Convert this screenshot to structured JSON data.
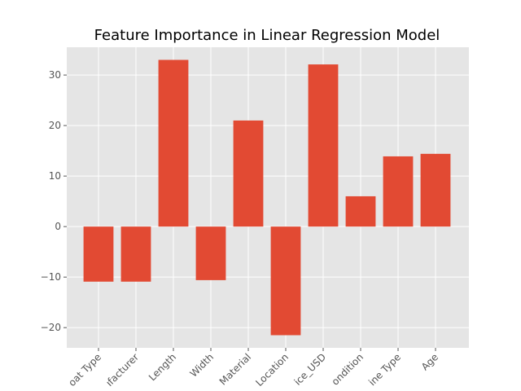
{
  "chart_data": {
    "type": "bar",
    "title": "Feature Importance in Linear Regression Model",
    "categories": [
      "Boat Type",
      "Manufacturer",
      "Length",
      "Width",
      "Material",
      "Location",
      "Price_USD",
      "Condition",
      "Engine Type",
      "Age"
    ],
    "visible_tick_labels": [
      "oat Type",
      "ıfacturer",
      "Length",
      "Width",
      "Material",
      "Location",
      "ice_USD",
      "ondition",
      "ine Type",
      "Age"
    ],
    "values": [
      -10.9,
      -10.9,
      33.0,
      -10.6,
      21.0,
      -21.5,
      32.1,
      6.0,
      13.9,
      14.4
    ],
    "ylim": [
      -24,
      35.5
    ],
    "yticks": [
      -20,
      -10,
      0,
      10,
      20,
      30
    ],
    "ytick_labels": [
      "−20",
      "−10",
      "0",
      "10",
      "20",
      "30"
    ],
    "xlabel": "",
    "ylabel": "",
    "grid": true,
    "legend": "none",
    "bar_color": "#E24A33",
    "plot_background": "#E5E5E5",
    "grid_color": "#FFFFFF"
  }
}
